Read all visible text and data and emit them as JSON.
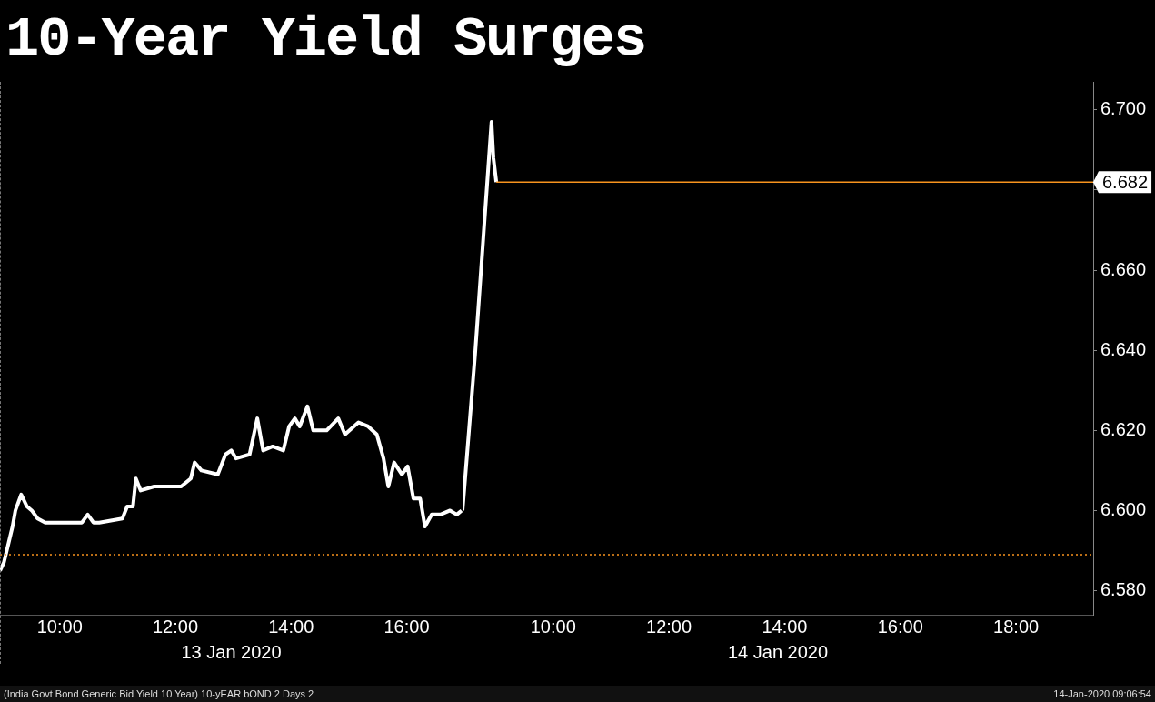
{
  "chart_data": [
    {
      "type": "line",
      "title": "10-Year Yield Surges",
      "xlabel": "13 Jan 2020",
      "x": [
        "2020-01-13T08:58",
        "2020-01-13T09:02",
        "2020-01-13T09:07",
        "2020-01-13T09:11",
        "2020-01-13T09:14",
        "2020-01-13T09:20",
        "2020-01-13T09:26",
        "2020-01-13T09:31",
        "2020-01-13T09:37",
        "2020-01-13T09:45",
        "2020-01-13T09:55",
        "2020-01-13T10:23",
        "2020-01-13T10:29",
        "2020-01-13T10:35",
        "2020-01-13T10:41",
        "2020-01-13T11:05",
        "2020-01-13T11:10",
        "2020-01-13T11:16",
        "2020-01-13T11:19",
        "2020-01-13T11:24",
        "2020-01-13T11:38",
        "2020-01-13T12:06",
        "2020-01-13T12:16",
        "2020-01-13T12:20",
        "2020-01-13T12:27",
        "2020-01-13T12:44",
        "2020-01-13T12:52",
        "2020-01-13T12:58",
        "2020-01-13T13:03",
        "2020-01-13T13:17",
        "2020-01-13T13:25",
        "2020-01-13T13:31",
        "2020-01-13T13:41",
        "2020-01-13T13:52",
        "2020-01-13T13:58",
        "2020-01-13T14:04",
        "2020-01-13T14:09",
        "2020-01-13T14:17",
        "2020-01-13T14:23",
        "2020-01-13T14:37",
        "2020-01-13T14:49",
        "2020-01-13T14:56",
        "2020-01-13T15:10",
        "2020-01-13T15:20",
        "2020-01-13T15:29",
        "2020-01-13T15:36",
        "2020-01-13T15:41",
        "2020-01-13T15:47",
        "2020-01-13T15:55",
        "2020-01-13T16:01",
        "2020-01-13T16:07",
        "2020-01-13T16:14",
        "2020-01-13T16:19",
        "2020-01-13T16:26",
        "2020-01-13T16:35",
        "2020-01-13T16:45",
        "2020-01-13T16:52",
        "2020-01-13T16:57"
      ],
      "series": [
        {
          "color": "#ffffff",
          "values": [
            6.585,
            6.587,
            6.592,
            6.596,
            6.6,
            6.604,
            6.601,
            6.6,
            6.598,
            6.597,
            6.597,
            6.597,
            6.599,
            6.597,
            6.597,
            6.598,
            6.601,
            6.601,
            6.608,
            6.605,
            6.606,
            6.606,
            6.608,
            6.612,
            6.61,
            6.609,
            6.614,
            6.615,
            6.613,
            6.614,
            6.623,
            6.615,
            6.616,
            6.615,
            6.621,
            6.623,
            6.621,
            6.626,
            6.62,
            6.62,
            6.623,
            6.619,
            6.622,
            6.621,
            6.619,
            6.613,
            6.606,
            6.612,
            6.609,
            6.611,
            6.603,
            6.603,
            6.596,
            6.599,
            6.599,
            6.6,
            6.599,
            6.6
          ]
        }
      ],
      "xlim": [
        "2020-01-13T08:58",
        "2020-01-13T16:58"
      ],
      "xticks": [
        {
          "value": "2020-01-13T10:00",
          "label": "10:00"
        },
        {
          "value": "2020-01-13T12:00",
          "label": "12:00"
        },
        {
          "value": "2020-01-13T14:00",
          "label": "14:00"
        },
        {
          "value": "2020-01-13T16:00",
          "label": "16:00"
        }
      ],
      "ylim": [
        6.574,
        6.707
      ],
      "tick_labels": "x",
      "marker": "none",
      "grid": false,
      "ref_lines": [
        {
          "axis": "y",
          "value": 6.589,
          "color": "#f7931e",
          "line_style": "dotted"
        }
      ],
      "annotations": [
        "(India Govt Bond Generic Bid Yield 10 Year) 10-yEAR bOND 2 Days 2",
        "14-Jan-2020 09:06:54"
      ]
    },
    {
      "type": "line",
      "xlabel": "14 Jan 2020",
      "x": [
        "2020-01-14T08:26",
        "2020-01-14T08:39",
        "2020-01-14T08:56",
        "2020-01-14T08:58",
        "2020-01-14T09:01"
      ],
      "series": [
        {
          "color": "#ffffff",
          "values": [
            6.6,
            6.639,
            6.697,
            6.688,
            6.682
          ]
        }
      ],
      "xlim": [
        "2020-01-14T08:26",
        "2020-01-14T19:20"
      ],
      "xticks": [
        {
          "value": "2020-01-14T10:00",
          "label": "10:00"
        },
        {
          "value": "2020-01-14T12:00",
          "label": "12:00"
        },
        {
          "value": "2020-01-14T14:00",
          "label": "14:00"
        },
        {
          "value": "2020-01-14T16:00",
          "label": "16:00"
        },
        {
          "value": "2020-01-14T18:00",
          "label": "18:00"
        }
      ],
      "ylim": [
        6.574,
        6.707
      ],
      "yticks": [
        {
          "value": 6.58,
          "label": "6.580"
        },
        {
          "value": 6.6,
          "label": "6.600"
        },
        {
          "value": 6.62,
          "label": "6.620"
        },
        {
          "value": 6.64,
          "label": "6.640"
        },
        {
          "value": 6.66,
          "label": "6.660"
        },
        {
          "value": 6.68,
          "label": null
        },
        {
          "value": 6.7,
          "label": "6.700"
        }
      ],
      "marker": "none",
      "grid": false,
      "ref_lines": [
        {
          "axis": "y",
          "value": 6.682,
          "label": "6.682",
          "color": "#f7931e",
          "line_style": "solid"
        },
        {
          "axis": "y",
          "value": 6.589,
          "color": "#f7931e",
          "line_style": "dotted"
        }
      ]
    }
  ]
}
